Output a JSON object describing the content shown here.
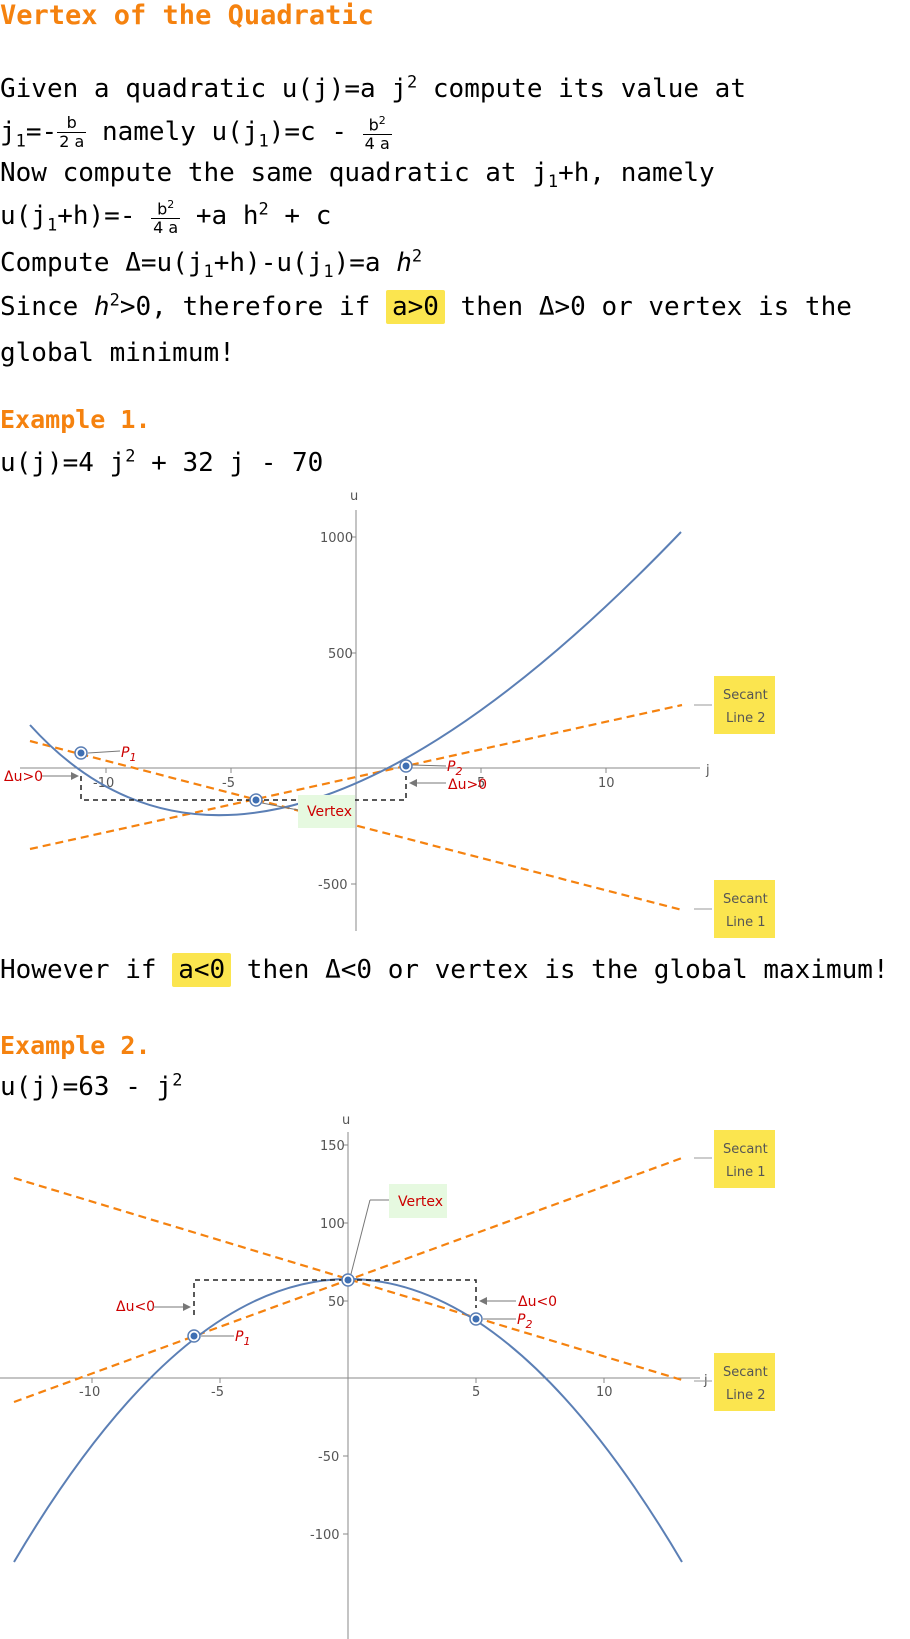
{
  "title": "Vertex of the Quadratic",
  "para": {
    "l1_pre": "Given a quadratic u(j)=a j",
    "l1_post": " compute its value at",
    "l2_pre": "j",
    "l2_namely": " namely u(j",
    "l2_eq": ")=c -",
    "l3": "Now compute the same quadratic at j",
    "l3_post": "+h, namely",
    "l4_pre": "u(j",
    "l4_post": "+h)=-",
    "l4_tail": "+a h",
    "l4_end": " + c",
    "l5_pre": "Compute Δ=u(j",
    "l5_mid": "+h)-u(j",
    "l5_post": ")=a ",
    "l6_pre": "Since ",
    "l6_mid": ">0, therefore if ",
    "l6_hl": "a>0",
    "l6_post": " then Δ>0 or vertex is the",
    "l7": "global minimum!",
    "h": "h",
    "two": "2",
    "one": "1",
    "one_eq": "=-",
    "frac_b": "b",
    "frac_2a": "2 a",
    "frac_b2": "b",
    "frac_4a": "4 a"
  },
  "example1": {
    "heading": "Example 1.",
    "formula_pre": "u(j)=4 j",
    "formula_post": " + 32 j - 70",
    "plot": {
      "axis_x": "j",
      "axis_y": "u",
      "x_ticks": [
        "-10",
        "-5",
        "5",
        "10"
      ],
      "y_ticks": [
        "1000",
        "500",
        "-500"
      ],
      "p1": "P",
      "p2": "P",
      "p1_sub": "1",
      "p2_sub": "2",
      "delta_left": "Δu>0",
      "delta_right": "Δu>0",
      "vertex": "Vertex",
      "secant1_a": "Secant",
      "secant1_b": "Line 1",
      "secant2_a": "Secant",
      "secant2_b": "Line 2"
    }
  },
  "middle": {
    "pre": "However if ",
    "hl": "a<0",
    "post": " then Δ<0 or vertex is the global maximum!"
  },
  "example2": {
    "heading": "Example 2.",
    "formula_pre": "u(j)=63 - j",
    "plot": {
      "axis_x": "j",
      "axis_y": "u",
      "x_ticks": [
        "-10",
        "-5",
        "5",
        "10"
      ],
      "y_ticks": [
        "150",
        "100",
        "50",
        "-50",
        "-100"
      ],
      "p1": "P",
      "p2": "P",
      "p1_sub": "1",
      "p2_sub": "2",
      "delta_left": "Δu<0",
      "delta_right": "Δu<0",
      "vertex": "Vertex",
      "secant1_a": "Secant",
      "secant1_b": "Line 1",
      "secant2_a": "Secant",
      "secant2_b": "Line 2"
    }
  },
  "chart_data": [
    {
      "type": "line",
      "function": "u(j)=4 j^2 + 32 j - 70",
      "xlabel": "j",
      "ylabel": "u",
      "xlim": [
        -13,
        13
      ],
      "ylim": [
        -680,
        1100
      ],
      "x_ticks": [
        -10,
        -5,
        5,
        10
      ],
      "y_ticks": [
        -500,
        500,
        1000
      ],
      "points": {
        "P1": [
          -11.3,
          78
        ],
        "P2": [
          2,
          10
        ],
        "Vertex": [
          -4,
          -134
        ]
      },
      "secants": [
        {
          "name": "Secant Line 1",
          "through": [
            [
              -11.3,
              78
            ],
            [
              -4,
              -134
            ]
          ]
        },
        {
          "name": "Secant Line 2",
          "through": [
            [
              -4,
              -134
            ],
            [
              2,
              10
            ]
          ]
        }
      ]
    },
    {
      "type": "line",
      "function": "u(j)=63 - j^2",
      "xlabel": "j",
      "ylabel": "u",
      "xlim": [
        -13,
        13
      ],
      "ylim": [
        -120,
        150
      ],
      "x_ticks": [
        -10,
        -5,
        5,
        10
      ],
      "y_ticks": [
        -100,
        -50,
        50,
        100,
        150
      ],
      "points": {
        "P1": [
          -6,
          27
        ],
        "P2": [
          5,
          38
        ],
        "Vertex": [
          0,
          63
        ]
      },
      "secants": [
        {
          "name": "Secant Line 1",
          "through": [
            [
              -6,
              27
            ],
            [
              0,
              63
            ]
          ]
        },
        {
          "name": "Secant Line 2",
          "through": [
            [
              0,
              63
            ],
            [
              5,
              38
            ]
          ]
        }
      ]
    }
  ]
}
